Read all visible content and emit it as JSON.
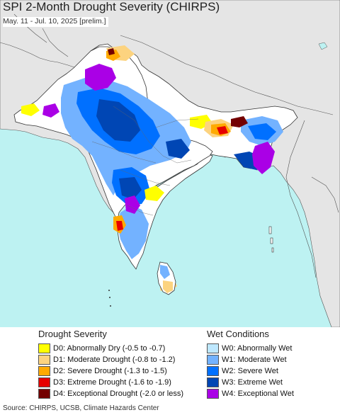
{
  "title": "SPI 2-Month Drought Severity (CHIRPS)",
  "subtitle": "May. 11 - Jul. 10, 2025 [prelim.]",
  "legend": {
    "drought": {
      "heading": "Drought Severity",
      "items": [
        {
          "label": "D0: Abnormally Dry (-0.5 to -0.7)",
          "color": "#ffff00"
        },
        {
          "label": "D1: Moderate Drought (-0.8 to -1.2)",
          "color": "#fcd37f"
        },
        {
          "label": "D2: Severe Drought (-1.3 to -1.5)",
          "color": "#ffaa00"
        },
        {
          "label": "D3: Extreme Drought (-1.6 to -1.9)",
          "color": "#e60000"
        },
        {
          "label": "D4: Exceptional Drought (-2.0 or less)",
          "color": "#730000"
        }
      ]
    },
    "wet": {
      "heading": "Wet Conditions",
      "items": [
        {
          "label": "W0: Abnormally Wet",
          "color": "#bee8ff"
        },
        {
          "label": "W1: Moderate Wet",
          "color": "#73b2ff"
        },
        {
          "label": "W2: Severe Wet",
          "color": "#0070ff"
        },
        {
          "label": "W3: Extreme Wet",
          "color": "#0046b4"
        },
        {
          "label": "W4: Exceptional Wet",
          "color": "#aa00e6"
        }
      ]
    }
  },
  "source": "Source: CHIRPS, UCSB, Climate Hazards Center",
  "colors": {
    "ocean": "#bdf2f2",
    "land_outside": "#e5e5e5",
    "land_normal": "#ffffff",
    "border": "#333333"
  }
}
